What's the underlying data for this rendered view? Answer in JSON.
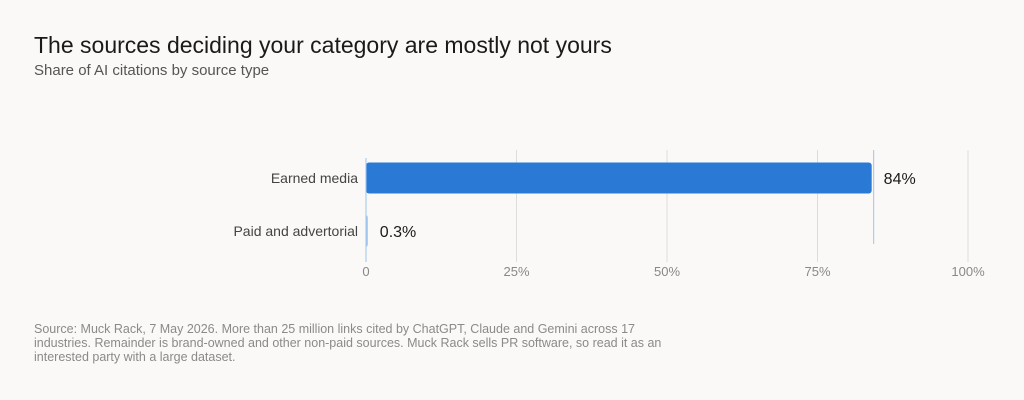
{
  "title": "The sources deciding your category are mostly not yours",
  "subtitle": "Share of AI citations by source type",
  "source_note": "Source: Muck Rack, 7 May 2026. More than 25 million links cited by ChatGPT, Claude and Gemini across 17 industries. Remainder is brand-owned and other non-paid sources. Muck Rack sells PR software, so read it as an interested party with a large dataset.",
  "colors": {
    "bar": "#2a7ad5",
    "bar_light": "#9ec5ee",
    "grid": "#dddddd",
    "tick_text": "#888888",
    "category_text": "#444444",
    "value_text": "#1a1a1a"
  },
  "chart_data": {
    "type": "bar",
    "orientation": "horizontal",
    "categories": [
      "Earned media",
      "Paid and advertorial"
    ],
    "values": [
      84,
      0.3
    ],
    "value_labels": [
      "84%",
      "0.3%"
    ],
    "xlim": [
      0,
      100
    ],
    "xticks": [
      0,
      25,
      50,
      75,
      100
    ],
    "xtick_labels": [
      "0",
      "25%",
      "50%",
      "75%",
      "100%"
    ],
    "grid": true
  }
}
